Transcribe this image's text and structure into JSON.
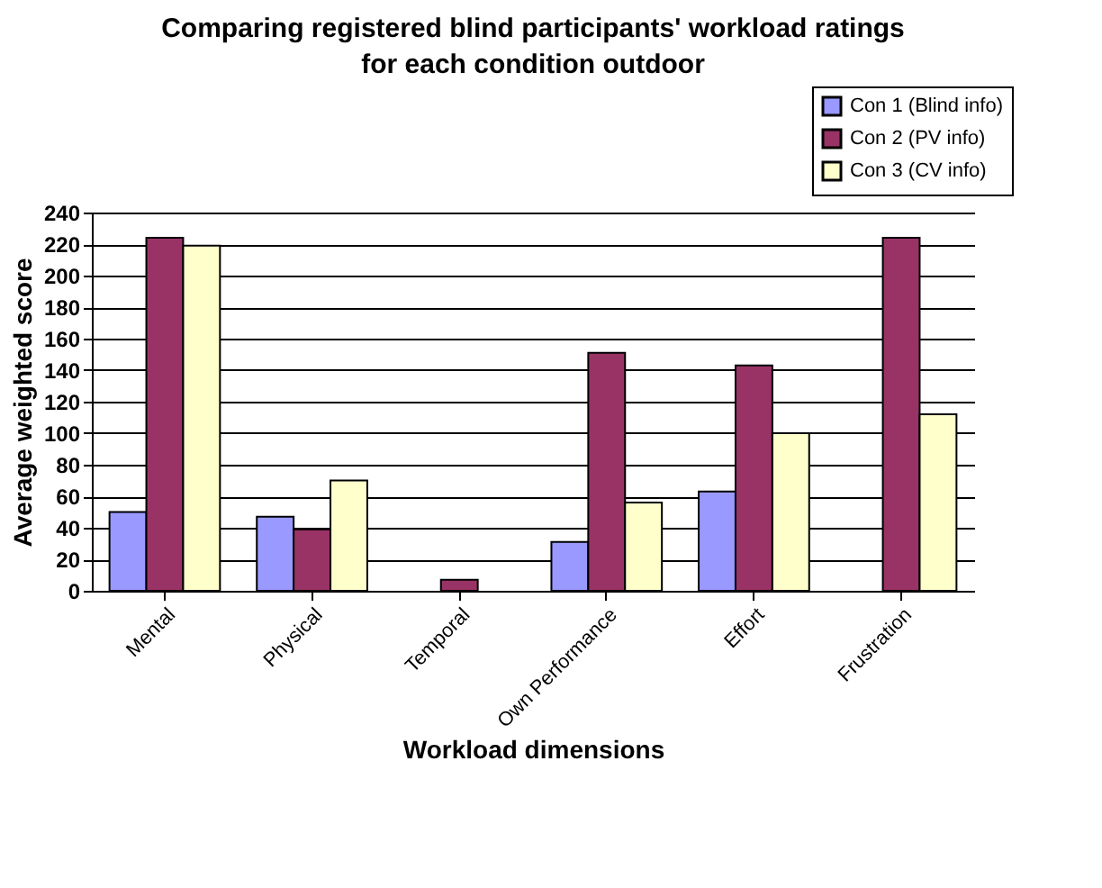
{
  "chart_data": {
    "type": "bar",
    "title": "Comparing registered blind participants' workload ratings for each condition outdoor",
    "xlabel": "Workload dimensions",
    "ylabel": "Average weighted score",
    "categories": [
      "Mental",
      "Physical",
      "Temporal",
      "Own Performance",
      "Effort",
      "Frustration"
    ],
    "series": [
      {
        "name": "Con 1 (Blind info)",
        "color": "#9999ff",
        "values": [
          50,
          47,
          null,
          31,
          63,
          null
        ]
      },
      {
        "name": "Con 2 (PV info)",
        "color": "#993366",
        "values": [
          224,
          39,
          7,
          151,
          143,
          224
        ]
      },
      {
        "name": "Con 3 (CV info)",
        "color": "#ffffcc",
        "values": [
          219,
          70,
          null,
          56,
          100,
          112
        ]
      }
    ],
    "ylim": [
      0,
      240
    ],
    "yticks": [
      0,
      20,
      40,
      60,
      80,
      100,
      120,
      140,
      160,
      180,
      200,
      220,
      240
    ],
    "grid": "y",
    "legend": "top right"
  }
}
